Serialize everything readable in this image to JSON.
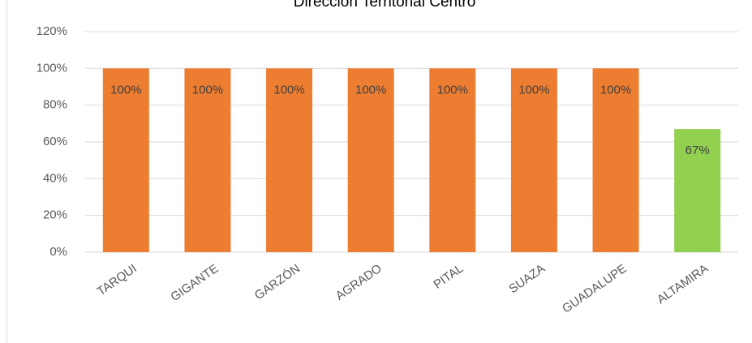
{
  "chart_data": {
    "type": "bar",
    "title": "Dirección Territorial Centro",
    "categories": [
      "TARQUI",
      "GIGANTE",
      "GARZÓN",
      "AGRADO",
      "PITAL",
      "SUAZA",
      "GUADALUPE",
      "ALTAMIRA"
    ],
    "values": [
      100,
      100,
      100,
      100,
      100,
      100,
      100,
      67
    ],
    "value_labels": [
      "100%",
      "100%",
      "100%",
      "100%",
      "100%",
      "100%",
      "100%",
      "67%"
    ],
    "colors": [
      "#ed7d31",
      "#ed7d31",
      "#ed7d31",
      "#ed7d31",
      "#ed7d31",
      "#ed7d31",
      "#ed7d31",
      "#92d050"
    ],
    "ylim": [
      0,
      120
    ],
    "yticks": [
      {
        "value": 0,
        "label": "0%"
      },
      {
        "value": 20,
        "label": "20%"
      },
      {
        "value": 40,
        "label": "40%"
      },
      {
        "value": 60,
        "label": "60%"
      },
      {
        "value": 80,
        "label": "80%"
      },
      {
        "value": 100,
        "label": "100%"
      },
      {
        "value": 120,
        "label": "120%"
      }
    ],
    "grid": true
  }
}
